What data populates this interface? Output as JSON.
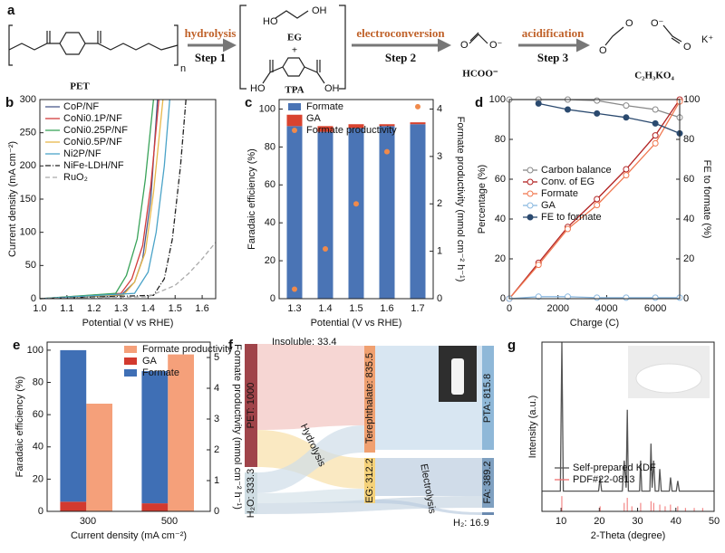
{
  "scheme": {
    "panel_label": "a",
    "reactant": "PET",
    "repeat": "n",
    "steps": [
      {
        "verb": "hydrolysis",
        "label": "Step 1"
      },
      {
        "verb": "electroconversion",
        "label": "Step 2"
      },
      {
        "verb": "acidification",
        "label": "Step 3"
      }
    ],
    "intermediates": [
      "EG",
      "+",
      "TPA"
    ],
    "product_2": "HCOO⁻",
    "product_3_ion": "K⁺",
    "product_3": "C₂H₃KO₄",
    "atoms": [
      "HO",
      "OH",
      "HO",
      "OH",
      "O",
      "O⁻",
      "O",
      "O",
      "O⁻",
      "O"
    ]
  },
  "chart_data": [
    {
      "type": "line",
      "panel_label": "b",
      "xlabel": "Potential (V vs RHE)",
      "ylabel": "Current density (mA cm⁻²)",
      "xlim": [
        1.0,
        1.65
      ],
      "xticks": [
        {
          "value": 1.0,
          "label": "1.0"
        },
        1.1,
        1.2,
        1.3,
        1.4,
        1.5,
        1.6
      ],
      "ylim": [
        0,
        300
      ],
      "yticks": [
        0,
        50,
        100,
        150,
        200,
        250,
        300
      ],
      "legend": "upper left",
      "series": [
        {
          "name": "CoP/NF",
          "color": "#4a5a8c",
          "x": [
            1.0,
            1.3,
            1.35,
            1.38,
            1.41,
            1.435
          ],
          "values": [
            0,
            5,
            25,
            60,
            150,
            300
          ]
        },
        {
          "name": "CoNi0.1P/NF",
          "color": "#d23c3c",
          "x": [
            1.0,
            1.3,
            1.34,
            1.38,
            1.41,
            1.44
          ],
          "values": [
            0,
            8,
            30,
            80,
            170,
            300
          ]
        },
        {
          "name": "CoNi0.25P/NF",
          "color": "#3aa35a",
          "x": [
            1.0,
            1.28,
            1.32,
            1.36,
            1.39,
            1.42
          ],
          "values": [
            0,
            8,
            35,
            90,
            180,
            300
          ]
        },
        {
          "name": "CoNi0.5P/NF",
          "color": "#e8b84a",
          "x": [
            1.0,
            1.31,
            1.35,
            1.39,
            1.42,
            1.455
          ],
          "values": [
            0,
            6,
            25,
            70,
            160,
            300
          ]
        },
        {
          "name": "Ni2P/NF",
          "color": "#4aa3c8",
          "x": [
            1.0,
            1.35,
            1.4,
            1.43,
            1.46,
            1.48
          ],
          "values": [
            0,
            8,
            40,
            100,
            200,
            300
          ]
        },
        {
          "name": "NiFe-LDH/NF",
          "color": "#222222",
          "dash": "dashdot",
          "x": [
            1.0,
            1.42,
            1.46,
            1.49,
            1.52,
            1.54
          ],
          "values": [
            0,
            5,
            30,
            90,
            200,
            300
          ]
        },
        {
          "name": "RuO₂",
          "color": "#aaaaaa",
          "dash": "dashed",
          "x": [
            1.0,
            1.4,
            1.5,
            1.55,
            1.6,
            1.65
          ],
          "values": [
            0,
            3,
            20,
            38,
            60,
            85
          ]
        }
      ]
    },
    {
      "type": "bar",
      "panel_label": "c",
      "xlabel": "Potential (V vs RHE)",
      "ylabel": "Faradaic efficiency (%)",
      "y2label": "Formate productivity (mmol cm⁻² h⁻¹)",
      "categories": [
        "1.3",
        "1.4",
        "1.5",
        "1.6",
        "1.7"
      ],
      "ylim": [
        0,
        105
      ],
      "yticks": [
        0,
        20,
        40,
        60,
        80,
        100
      ],
      "y2lim": [
        0,
        4.2
      ],
      "y2ticks": [
        0,
        1,
        2,
        3,
        4
      ],
      "legend": "upper center",
      "series": [
        {
          "name": "Formate",
          "color": "#4a74b5",
          "stack": true,
          "values": [
            91,
            88,
            90,
            91,
            92
          ]
        },
        {
          "name": "GA",
          "color": "#d9432f",
          "stack": true,
          "values": [
            6,
            3,
            2,
            1,
            1
          ]
        },
        {
          "name": "Formate productivity",
          "color": "#f08a4b",
          "mark": "scatter",
          "axis": "y2",
          "values": [
            0.2,
            1.05,
            2.0,
            3.1,
            4.05
          ]
        }
      ]
    },
    {
      "type": "line",
      "panel_label": "d",
      "xlabel": "Charge (C)",
      "ylabel": "Percentage (%)",
      "y2label": "FE to formate (%)",
      "xlim": [
        0,
        7000
      ],
      "xticks": [
        0,
        2000,
        4000,
        6000
      ],
      "ylim": [
        0,
        100
      ],
      "yticks": [
        0,
        20,
        40,
        60,
        80,
        100
      ],
      "y2lim": [
        0,
        100
      ],
      "y2ticks": [
        0,
        20,
        40,
        60,
        80,
        100
      ],
      "legend": "center",
      "series": [
        {
          "name": "Carbon balance",
          "color": "#888888",
          "marker": "open",
          "x": [
            0,
            1200,
            2400,
            3600,
            4800,
            6000,
            7000
          ],
          "values": [
            100,
            100,
            100,
            99.5,
            97,
            95,
            91
          ]
        },
        {
          "name": "Conv. of EG",
          "color": "#b22222",
          "marker": "open",
          "x": [
            0,
            1200,
            2400,
            3600,
            4800,
            6000,
            7000
          ],
          "values": [
            0,
            18,
            36,
            50,
            65,
            82,
            100
          ]
        },
        {
          "name": "Formate",
          "color": "#f07850",
          "marker": "open",
          "x": [
            0,
            1200,
            2400,
            3600,
            4800,
            6000,
            7000
          ],
          "values": [
            0,
            17,
            35,
            47,
            62,
            78,
            99
          ]
        },
        {
          "name": "GA",
          "color": "#8ab8e0",
          "marker": "open",
          "x": [
            0,
            1200,
            2400,
            3600,
            4800,
            6000,
            7000
          ],
          "values": [
            0,
            1,
            1,
            0.5,
            0.5,
            0.5,
            0.5
          ]
        },
        {
          "name": "FE to formate",
          "color": "#2b4a6f",
          "marker": "filled",
          "axis": "y2",
          "x": [
            1200,
            2400,
            3600,
            4800,
            6000,
            7000
          ],
          "values": [
            98,
            95,
            93,
            91,
            88,
            83
          ]
        }
      ]
    },
    {
      "type": "bar",
      "panel_label": "e",
      "xlabel": "Current density (mA cm⁻²)",
      "ylabel": "Faradaic efficiency (%)",
      "y2label": "Formate productivity (mmol cm⁻² h⁻¹)",
      "categories": [
        "300",
        "500"
      ],
      "ylim": [
        0,
        105
      ],
      "yticks": [
        0,
        20,
        40,
        60,
        80,
        100
      ],
      "y2lim": [
        0,
        5.5
      ],
      "y2ticks": [
        0,
        1,
        2,
        3,
        4,
        5
      ],
      "legend": "upper right",
      "series": [
        {
          "name": "Formate productivity",
          "color": "#f5a07a",
          "mark": "bar",
          "axis": "y2",
          "values": [
            3.5,
            5.1
          ]
        },
        {
          "name": "GA",
          "color": "#d23a2f",
          "stack": true,
          "values": [
            6,
            5
          ]
        },
        {
          "name": "Formate",
          "color": "#3f6fb5",
          "stack": true,
          "values": [
            94,
            82
          ]
        }
      ]
    },
    {
      "type": "line",
      "panel_label": "g",
      "xlabel": "2-Theta (degree)",
      "ylabel": "Intensity (a.u.)",
      "xlim": [
        5,
        50
      ],
      "xticks": [
        10,
        20,
        30,
        40,
        50
      ],
      "ylim": [
        0,
        1
      ],
      "legend": "lower left",
      "series": [
        {
          "name": "Self-prepared KDF",
          "color": "#555555",
          "x": [
            5,
            9.8,
            10.2,
            10.6,
            19.8,
            20.2,
            20.6,
            26,
            26.5,
            27,
            27.3,
            27.6,
            30.5,
            30.8,
            31.1,
            33.2,
            33.5,
            33.8,
            34.2,
            34.6,
            35.5,
            35.8,
            36.2,
            38.3,
            38.6,
            39,
            40.1,
            40.5,
            40.9,
            50
          ],
          "values": [
            0.12,
            0.12,
            1.0,
            0.12,
            0.12,
            0.2,
            0.12,
            0.12,
            0.3,
            0.14,
            0.6,
            0.12,
            0.12,
            0.3,
            0.12,
            0.12,
            0.4,
            0.14,
            0.3,
            0.12,
            0.12,
            0.25,
            0.12,
            0.12,
            0.2,
            0.12,
            0.12,
            0.18,
            0.12,
            0.12
          ]
        },
        {
          "name": "PDF#22-0813",
          "color": "#f07070",
          "mark": "stick",
          "x": [
            10.2,
            20.2,
            26.5,
            27.3,
            28.5,
            30.8,
            33.5,
            34.2,
            35.8,
            37.2,
            38.6,
            40.5,
            42.5,
            44.8,
            47
          ],
          "values": [
            0.09,
            0.03,
            0.05,
            0.08,
            0.03,
            0.05,
            0.06,
            0.05,
            0.04,
            0.03,
            0.04,
            0.03,
            0.02,
            0.02,
            0.02
          ]
        }
      ]
    }
  ],
  "sankey": {
    "panel_label": "f",
    "nodes": [
      "PET: 1000",
      "H₂O: 333.3",
      "Insoluble: 33.4",
      "Terephthalate: 835.5",
      "EG: 312.2",
      "PTA: 815.8",
      "FA: 389.2",
      "H₂: 16.9"
    ],
    "links": [
      "Hydrolysis",
      "Electrolysis"
    ]
  }
}
